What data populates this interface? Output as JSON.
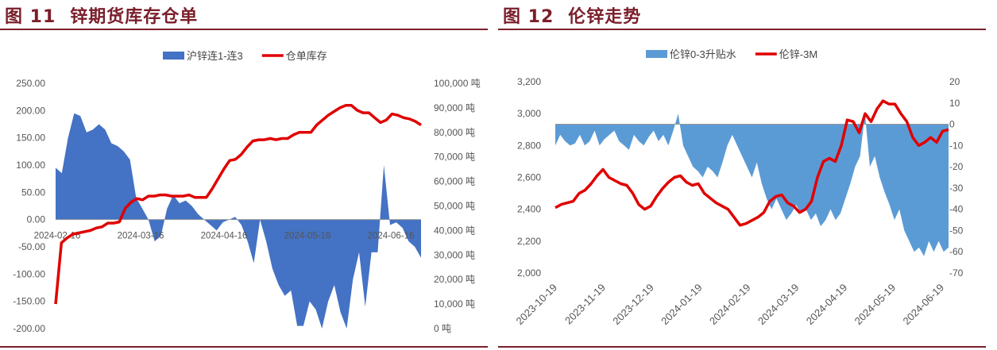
{
  "left": {
    "fig_num": "图 11",
    "fig_title": "锌期货库存仓单",
    "chart_data": {
      "type": "area+line",
      "x_ticks": [
        "2024-02-16",
        "2024-03-16",
        "2024-04-16",
        "2024-05-16",
        "2024-06-16"
      ],
      "y_left_ticks": [
        "250.00",
        "200.00",
        "150.00",
        "100.00",
        "50.00",
        "0.00",
        "-50.00",
        "-100.00",
        "-150.00",
        "-200.00"
      ],
      "y_left_lim": [
        -200,
        250
      ],
      "y_right_ticks": [
        "100,000 吨",
        "90,000 吨",
        "80,000 吨",
        "70,000 吨",
        "60,000 吨",
        "50,000 吨",
        "40,000 吨",
        "30,000 吨",
        "20,000 吨",
        "10,000 吨",
        "0 吨"
      ],
      "y_right_lim": [
        0,
        100000
      ],
      "series": [
        {
          "name": "沪锌连1-连3",
          "kind": "area",
          "axis": "left",
          "color": "#4472c4",
          "values": [
            95,
            85,
            150,
            195,
            190,
            160,
            165,
            175,
            165,
            140,
            135,
            125,
            110,
            40,
            20,
            0,
            -40,
            -30,
            20,
            45,
            30,
            35,
            25,
            10,
            0,
            -10,
            -20,
            -5,
            0,
            5,
            -10,
            -40,
            -80,
            0,
            -40,
            -90,
            -120,
            -140,
            -130,
            -195,
            -195,
            -150,
            -165,
            -200,
            -150,
            -120,
            -170,
            -200,
            -110,
            -60,
            -160,
            -60,
            -60,
            100,
            -10,
            -5,
            -15,
            -40,
            -50,
            -70
          ]
        },
        {
          "name": "仓单库存",
          "kind": "line",
          "axis": "right",
          "color": "#e00000",
          "values": [
            10000,
            35000,
            37000,
            38500,
            39000,
            39500,
            40000,
            41000,
            41500,
            43000,
            43000,
            43500,
            49000,
            51500,
            53000,
            52500,
            54000,
            54000,
            54500,
            54500,
            54000,
            54000,
            54000,
            54500,
            53500,
            53500,
            53500,
            57000,
            61000,
            65000,
            68500,
            69000,
            71000,
            74000,
            76500,
            77000,
            77000,
            77500,
            77000,
            77500,
            77500,
            79000,
            80000,
            80000,
            80000,
            83000,
            85000,
            87000,
            88500,
            90000,
            91000,
            91000,
            89000,
            88000,
            88000,
            86000,
            84000,
            85000,
            87500,
            87000,
            86000,
            85500,
            84500,
            83000
          ]
        }
      ],
      "legend_position": "top-center",
      "grid": false
    }
  },
  "right": {
    "fig_num": "图 12",
    "fig_title": "伦锌走势",
    "chart_data": {
      "type": "area+line",
      "x_ticks": [
        "2023-10-19",
        "2023-11-19",
        "2023-12-19",
        "2024-01-19",
        "2024-02-19",
        "2024-03-19",
        "2024-04-19",
        "2024-05-19",
        "2024-06-19"
      ],
      "y_left_ticks": [
        "3,200",
        "3,000",
        "2,800",
        "2,600",
        "2,400",
        "2,200",
        "2,000"
      ],
      "y_left_lim": [
        2000,
        3200
      ],
      "y_right_ticks": [
        "20",
        "10",
        "0",
        "-10",
        "-20",
        "-30",
        "-40",
        "-50",
        "-60",
        "-70"
      ],
      "y_right_lim": [
        -70,
        20
      ],
      "series": [
        {
          "name": "伦锌0-3升贴水",
          "kind": "area",
          "axis": "right",
          "color": "#5b9bd5",
          "values": [
            -10,
            -5,
            -8,
            -10,
            -9,
            -5,
            -10,
            -8,
            -3,
            -10,
            -7,
            -5,
            -3,
            -8,
            -10,
            -12,
            -5,
            -8,
            -10,
            -6,
            -3,
            -8,
            -5,
            -10,
            -3,
            5,
            -10,
            -15,
            -20,
            -22,
            -25,
            -20,
            -22,
            -25,
            -18,
            -10,
            -5,
            -10,
            -15,
            -20,
            -25,
            -18,
            -28,
            -35,
            -40,
            -35,
            -40,
            -45,
            -42,
            -38,
            -42,
            -40,
            -45,
            -42,
            -48,
            -45,
            -40,
            -45,
            -42,
            -35,
            -28,
            -20,
            -15,
            5,
            -20,
            -15,
            -25,
            -32,
            -38,
            -45,
            -40,
            -50,
            -55,
            -60,
            -58,
            -62,
            -55,
            -60,
            -55,
            -60,
            -58
          ]
        },
        {
          "name": "伦锌-3M",
          "kind": "line",
          "axis": "left",
          "color": "#e00000",
          "values": [
            2410,
            2430,
            2440,
            2450,
            2500,
            2520,
            2560,
            2610,
            2650,
            2600,
            2580,
            2560,
            2550,
            2500,
            2430,
            2400,
            2420,
            2480,
            2530,
            2570,
            2600,
            2610,
            2570,
            2550,
            2560,
            2500,
            2470,
            2440,
            2420,
            2400,
            2350,
            2300,
            2310,
            2330,
            2350,
            2380,
            2450,
            2480,
            2490,
            2440,
            2420,
            2380,
            2400,
            2450,
            2600,
            2700,
            2720,
            2700,
            2800,
            2960,
            2950,
            2880,
            3000,
            2950,
            3030,
            3080,
            3060,
            3060,
            3000,
            2950,
            2850,
            2800,
            2820,
            2850,
            2820,
            2890,
            2900
          ]
        }
      ],
      "legend_position": "top-center",
      "grid": false
    }
  }
}
